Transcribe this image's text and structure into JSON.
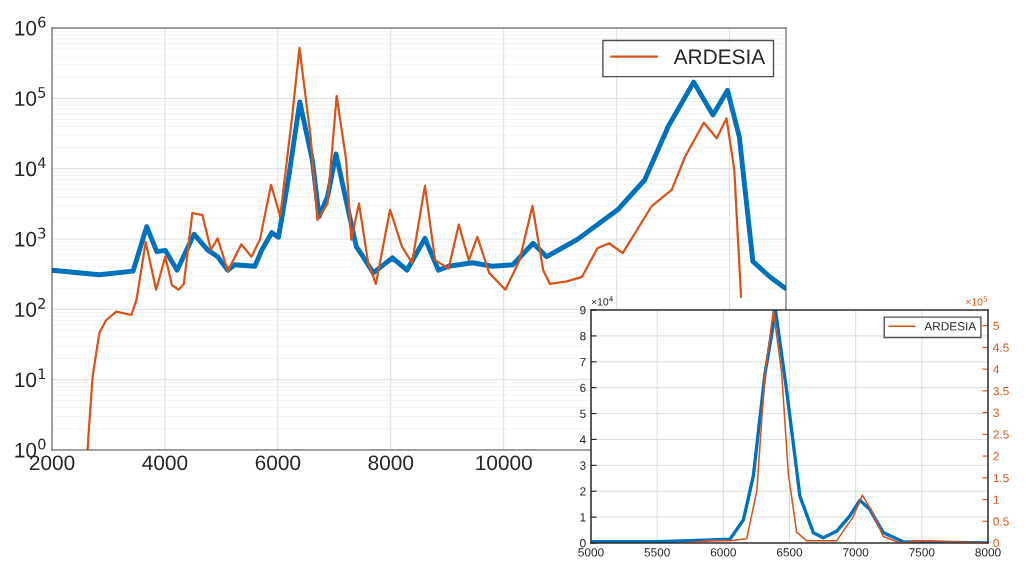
{
  "chart_data": [
    {
      "type": "line",
      "xlim": [
        2000,
        15000
      ],
      "xticks": [
        2000,
        4000,
        6000,
        8000,
        10000,
        {
          "value": 12000,
          "label": null
        },
        {
          "value": 14000,
          "label": null
        }
      ],
      "ylim": [
        1,
        1000000
      ],
      "yticks": [
        {
          "value": 1,
          "label": "10$^{0}$"
        },
        {
          "value": 10,
          "label": "10$^{1}$"
        },
        {
          "value": 100,
          "label": "10$^{2}$"
        },
        {
          "value": 1000,
          "label": "10$^{3}$"
        },
        {
          "value": 10000,
          "label": "10$^{4}$"
        },
        {
          "value": 100000,
          "label": "10$^{5}$"
        },
        {
          "value": 1000000,
          "label": "10$^{6}$"
        }
      ],
      "log": true,
      "grid": true,
      "legend": "top right",
      "series": [
        {
          "color": "#0072bd",
          "x": [
            2000,
            2838,
            3437,
            3677,
            3856,
            4006,
            4216,
            4515,
            4755,
            4934,
            5114,
            5234,
            5593,
            5713,
            5892,
            6012,
            6192,
            6389,
            6611,
            6731,
            6880,
            7030,
            7270,
            7389,
            7509,
            7689,
            8030,
            8287,
            8605,
            8844,
            9024,
            9443,
            9802,
            10162,
            10521,
            10760,
            11300,
            12018,
            12497,
            12916,
            13365,
            13707,
            13964,
            14174,
            14413,
            14713,
            14982
          ],
          "values": [
            360,
            310,
            350,
            1500,
            660,
            690,
            360,
            1170,
            700,
            560,
            360,
            430,
            410,
            690,
            1230,
            1060,
            7600,
            89000,
            13200,
            2090,
            4000,
            16200,
            2100,
            780,
            560,
            330,
            540,
            360,
            1020,
            360,
            410,
            460,
            410,
            430,
            870,
            560,
            980,
            2600,
            6900,
            40000,
            170000,
            58000,
            130000,
            28000,
            480,
            290,
            200
          ]
        },
        {
          "name": "ARDESIA",
          "color": "#d95319",
          "x": [
            2630,
            2650,
            2719,
            2838,
            2958,
            3138,
            3407,
            3497,
            3659,
            3844,
            4006,
            4126,
            4245,
            4335,
            4485,
            4665,
            4814,
            4934,
            5114,
            5353,
            5533,
            5683,
            5880,
            6042,
            6252,
            6383,
            6581,
            6701,
            6880,
            7042,
            7210,
            7300,
            7437,
            7599,
            7736,
            7988,
            8198,
            8377,
            8605,
            8784,
            9024,
            9204,
            9383,
            9533,
            9743,
            10030,
            10281,
            10509,
            10700,
            10820,
            11120,
            11389,
            11659,
            11868,
            12108,
            12617,
            12976,
            13216,
            13545,
            13773,
            13946,
            14084,
            14204
          ],
          "values": [
            1,
            1.8,
            11,
            46,
            70,
            93,
            83,
            137,
            910,
            190,
            560,
            220,
            190,
            230,
            2340,
            2180,
            700,
            1020,
            350,
            840,
            560,
            980,
            5900,
            2090,
            54000,
            520000,
            28000,
            1870,
            3200,
            108000,
            13200,
            980,
            3200,
            460,
            230,
            2600,
            780,
            460,
            5700,
            500,
            380,
            1600,
            500,
            1070,
            330,
            190,
            500,
            2950,
            360,
            230,
            250,
            290,
            740,
            870,
            630,
            2900,
            5000,
            15000,
            45000,
            27000,
            52000,
            9600,
            150
          ]
        }
      ]
    },
    {
      "type": "line",
      "xlim": [
        5000,
        8000
      ],
      "xticks": [
        5000,
        5500,
        6000,
        6500,
        7000,
        7500,
        8000
      ],
      "ylim": [
        0,
        9
      ],
      "yticks": [
        0,
        1,
        2,
        3,
        4,
        5,
        6,
        7,
        8,
        9
      ],
      "y2lim": [
        0,
        5.36
      ],
      "y2ticks": [
        0,
        0.5,
        1,
        1.5,
        2,
        2.5,
        3,
        3.5,
        4,
        4.5,
        5
      ],
      "grid": true,
      "legend": "top right",
      "annotations": [
        "×10$^{4}$",
        "×10$^{5}$"
      ],
      "series": [
        {
          "color": "#0072bd",
          "x": [
            5000,
            5500,
            5800,
            6051,
            6152,
            6227,
            6315,
            6395,
            6478,
            6579,
            6680,
            6755,
            6856,
            6956,
            7032,
            7107,
            7208,
            7359,
            8000
          ],
          "values": [
            0.05,
            0.05,
            0.1,
            0.15,
            0.9,
            2.6,
            6.55,
            8.95,
            5.9,
            1.8,
            0.4,
            0.2,
            0.45,
            1.05,
            1.65,
            1.3,
            0.4,
            0.05,
            0
          ]
        },
        {
          "name": "ARDESIA",
          "color": "#d95319",
          "axis": "y2",
          "x": [
            5699,
            5900,
            6051,
            6177,
            6253,
            6315,
            6378,
            6441,
            6491,
            6554,
            6630,
            6856,
            6981,
            7050,
            7120,
            7208,
            7334,
            7485,
            8000
          ],
          "values": [
            0,
            0.05,
            0.05,
            0.1,
            1.2,
            3.9,
            5.35,
            3.9,
            1.6,
            0.25,
            0.05,
            0.05,
            0.6,
            1.1,
            0.75,
            0.15,
            0,
            0.05,
            0
          ]
        }
      ]
    }
  ]
}
